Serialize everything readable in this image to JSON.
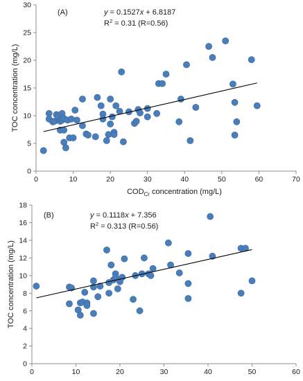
{
  "chart_data": [
    {
      "type": "scatter",
      "panel_label": "(A)",
      "equation": {
        "prefix": "y",
        "middle": " = 0.1527",
        "var": "x",
        "suffix": " + 6.8187"
      },
      "r_squared": {
        "prefix": "R",
        "sup": "2",
        "suffix": " = 0.31 (R=0.56)"
      },
      "xlabel": {
        "main": "COD",
        "sub": "Cr",
        "rest": " concentration (mg/L)"
      },
      "ylabel": "TOC concentration (mg/L)",
      "xlim": [
        0,
        70
      ],
      "ylim": [
        0,
        30
      ],
      "xticks": [
        0,
        10,
        20,
        30,
        40,
        50,
        60,
        70
      ],
      "yticks": [
        0,
        5,
        10,
        15,
        20,
        25,
        30
      ],
      "trendline": {
        "slope": 0.1527,
        "intercept": 6.8187,
        "x_range": [
          2,
          59.5
        ]
      },
      "points": [
        [
          2.0,
          3.7
        ],
        [
          3.5,
          10.4
        ],
        [
          3.5,
          9.4
        ],
        [
          4.5,
          8.9
        ],
        [
          5.0,
          9.0
        ],
        [
          5.5,
          10.2
        ],
        [
          6.0,
          9.3
        ],
        [
          6.0,
          9.8
        ],
        [
          6.5,
          7.4
        ],
        [
          6.5,
          9.0
        ],
        [
          7.0,
          10.4
        ],
        [
          7.0,
          9.2
        ],
        [
          7.5,
          9.5
        ],
        [
          7.5,
          7.4
        ],
        [
          7.5,
          5.2
        ],
        [
          8.0,
          4.2
        ],
        [
          8.5,
          9.2
        ],
        [
          9.0,
          6.0
        ],
        [
          9.5,
          9.4
        ],
        [
          10.0,
          6.0
        ],
        [
          10.5,
          11.0
        ],
        [
          11.0,
          9.2
        ],
        [
          12.5,
          8.2
        ],
        [
          12.5,
          13.0
        ],
        [
          13.5,
          6.7
        ],
        [
          14.0,
          6.5
        ],
        [
          16.0,
          6.2
        ],
        [
          16.5,
          13.3
        ],
        [
          17.5,
          11.8
        ],
        [
          18.0,
          10.3
        ],
        [
          18.0,
          9.4
        ],
        [
          19.0,
          5.5
        ],
        [
          19.5,
          6.6
        ],
        [
          20.0,
          13.0
        ],
        [
          20.0,
          8.5
        ],
        [
          20.5,
          9.8
        ],
        [
          21.0,
          7.0
        ],
        [
          21.0,
          6.6
        ],
        [
          21.5,
          11.8
        ],
        [
          22.5,
          10.8
        ],
        [
          23.0,
          17.9
        ],
        [
          23.5,
          5.3
        ],
        [
          25.0,
          10.7
        ],
        [
          26.5,
          8.6
        ],
        [
          27.0,
          9.0
        ],
        [
          27.5,
          11.1
        ],
        [
          28.0,
          10.5
        ],
        [
          30.0,
          9.8
        ],
        [
          30.0,
          11.3
        ],
        [
          32.5,
          10.4
        ],
        [
          33.0,
          15.8
        ],
        [
          34.0,
          15.8
        ],
        [
          35.0,
          17.5
        ],
        [
          38.5,
          8.9
        ],
        [
          39.0,
          13.0
        ],
        [
          40.5,
          19.2
        ],
        [
          41.5,
          5.5
        ],
        [
          43.0,
          11.5
        ],
        [
          46.5,
          22.5
        ],
        [
          47.5,
          20.5
        ],
        [
          51.0,
          23.5
        ],
        [
          53.0,
          15.7
        ],
        [
          53.5,
          12.4
        ],
        [
          53.5,
          6.5
        ],
        [
          54.0,
          8.9
        ],
        [
          58.0,
          20.1
        ],
        [
          59.5,
          11.8
        ]
      ]
    },
    {
      "type": "scatter",
      "panel_label": "(B)",
      "equation": {
        "prefix": "y",
        "middle": " = 0.1118",
        "var": "x",
        "suffix": " + 7.356"
      },
      "r_squared": {
        "prefix": "R",
        "sup": "2",
        "suffix": " = 0.313 (R=0.56)"
      },
      "xlabel": {
        "main": "COD",
        "sub": "Cr",
        "rest": " concentration (mg/L)"
      },
      "ylabel": "TOC concentration (mg/L)",
      "xlim": [
        0,
        60
      ],
      "ylim": [
        0,
        18
      ],
      "xticks": [
        0,
        10,
        20,
        30,
        40,
        50,
        60
      ],
      "yticks": [
        0,
        2,
        4,
        6,
        8,
        10,
        12,
        14,
        16,
        18
      ],
      "trendline": {
        "slope": 0.1118,
        "intercept": 7.356,
        "x_range": [
          1,
          50
        ]
      },
      "points": [
        [
          1.0,
          8.8
        ],
        [
          8.5,
          6.8
        ],
        [
          8.5,
          8.7
        ],
        [
          9.0,
          8.6
        ],
        [
          10.5,
          6.1
        ],
        [
          11.0,
          6.9
        ],
        [
          11.0,
          5.5
        ],
        [
          11.5,
          7.0
        ],
        [
          12.0,
          8.1
        ],
        [
          12.5,
          6.9
        ],
        [
          12.5,
          6.6
        ],
        [
          14.0,
          9.4
        ],
        [
          14.0,
          8.7
        ],
        [
          14.0,
          5.7
        ],
        [
          15.0,
          7.6
        ],
        [
          15.5,
          8.8
        ],
        [
          17.0,
          12.9
        ],
        [
          17.5,
          8.0
        ],
        [
          17.5,
          9.2
        ],
        [
          18.0,
          11.2
        ],
        [
          18.5,
          9.5
        ],
        [
          19.0,
          10.2
        ],
        [
          19.0,
          9.8
        ],
        [
          19.5,
          8.5
        ],
        [
          20.0,
          9.3
        ],
        [
          20.5,
          9.8
        ],
        [
          21.0,
          11.9
        ],
        [
          23.0,
          7.3
        ],
        [
          23.5,
          10.0
        ],
        [
          24.5,
          6.0
        ],
        [
          25.0,
          10.2
        ],
        [
          25.5,
          12.0
        ],
        [
          26.5,
          10.2
        ],
        [
          27.0,
          10.0
        ],
        [
          27.5,
          10.8
        ],
        [
          31.0,
          13.7
        ],
        [
          31.5,
          11.2
        ],
        [
          33.5,
          10.3
        ],
        [
          35.5,
          12.5
        ],
        [
          35.5,
          9.1
        ],
        [
          35.5,
          7.4
        ],
        [
          40.5,
          16.7
        ],
        [
          41.0,
          12.2
        ],
        [
          47.5,
          13.1
        ],
        [
          47.5,
          8.0
        ],
        [
          48.5,
          13.1
        ],
        [
          50.0,
          9.4
        ]
      ]
    }
  ]
}
